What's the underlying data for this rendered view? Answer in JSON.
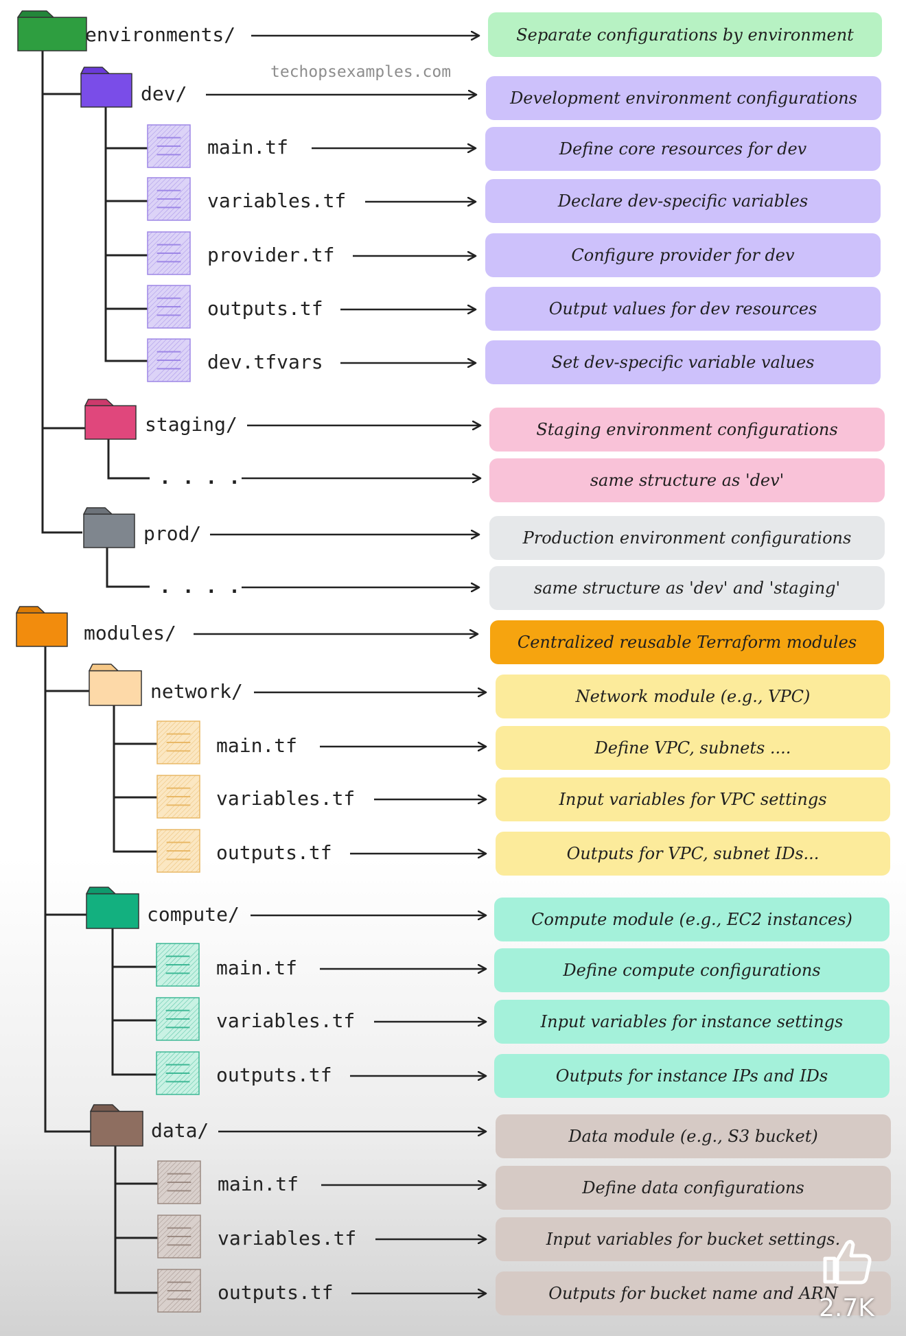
{
  "watermark": "techopsexamples.com",
  "like_count": "2.7K",
  "colors": {
    "green": {
      "folder": "#2e9e40",
      "folderTab": "#23863a",
      "box": "#b7f2c3"
    },
    "violet": {
      "folder": "#7a4de8",
      "folderTab": "#6a3bd8",
      "file": "#dcd3f7",
      "fileLine": "#9d86e6",
      "box": "#cdc1fb"
    },
    "pink": {
      "folder": "#e0477c",
      "folderTab": "#cc3a6c",
      "box": "#f9c2d8"
    },
    "gray": {
      "folder": "#7f868e",
      "folderTab": "#6d737a",
      "box": "#e6e8ea"
    },
    "orange": {
      "folder": "#f28c0d",
      "folderTab": "#dd7c05",
      "box": "#f6a40f"
    },
    "peach": {
      "folder": "#fdd9a8",
      "folderTab": "#f6c887",
      "file": "#fbe7c2",
      "fileLine": "#e9b866",
      "box": "#fceb9b"
    },
    "teal": {
      "folder": "#13b07f",
      "folderTab": "#0f9a6d",
      "file": "#c9f2e4",
      "fileLine": "#3db895",
      "box": "#a4f1da"
    },
    "brown": {
      "folder": "#8e6e60",
      "folderTab": "#7a5c50",
      "file": "#d9d0cc",
      "fileLine": "#9b8a82",
      "box": "#d6cac5"
    }
  },
  "tree": [
    {
      "id": "environments",
      "kind": "folder",
      "label": "environments/",
      "desc": "Separate configurations by environment",
      "color": "green"
    },
    {
      "id": "dev",
      "kind": "folder",
      "label": "dev/",
      "desc": "Development environment configurations",
      "color": "violet"
    },
    {
      "id": "dev-main",
      "kind": "file",
      "label": "main.tf",
      "desc": "Define core resources for dev",
      "color": "violet"
    },
    {
      "id": "dev-variables",
      "kind": "file",
      "label": "variables.tf",
      "desc": "Declare dev-specific variables",
      "color": "violet"
    },
    {
      "id": "dev-provider",
      "kind": "file",
      "label": "provider.tf",
      "desc": "Configure provider for dev",
      "color": "violet"
    },
    {
      "id": "dev-outputs",
      "kind": "file",
      "label": "outputs.tf",
      "desc": "Output values for dev resources",
      "color": "violet"
    },
    {
      "id": "dev-tfvars",
      "kind": "file",
      "label": "dev.tfvars",
      "desc": "Set dev-specific variable values",
      "color": "violet"
    },
    {
      "id": "staging",
      "kind": "folder",
      "label": "staging/",
      "desc": "Staging environment configurations",
      "color": "pink"
    },
    {
      "id": "staging-rest",
      "kind": "dots",
      "label": ". . . .",
      "desc": "same structure as 'dev'",
      "color": "pink"
    },
    {
      "id": "prod",
      "kind": "folder",
      "label": "prod/",
      "desc": "Production environment configurations",
      "color": "gray"
    },
    {
      "id": "prod-rest",
      "kind": "dots",
      "label": ". . . .",
      "desc": "same structure as 'dev' and 'staging'",
      "color": "gray"
    },
    {
      "id": "modules",
      "kind": "folder",
      "label": "modules/",
      "desc": "Centralized reusable Terraform modules",
      "color": "orange"
    },
    {
      "id": "network",
      "kind": "folder",
      "label": "network/",
      "desc": "Network module (e.g., VPC)",
      "color": "peach"
    },
    {
      "id": "network-main",
      "kind": "file",
      "label": "main.tf",
      "desc": "Define VPC, subnets ....",
      "color": "peach"
    },
    {
      "id": "network-variables",
      "kind": "file",
      "label": "variables.tf",
      "desc": "Input variables for VPC settings",
      "color": "peach"
    },
    {
      "id": "network-outputs",
      "kind": "file",
      "label": "outputs.tf",
      "desc": "Outputs for VPC, subnet IDs...",
      "color": "peach"
    },
    {
      "id": "compute",
      "kind": "folder",
      "label": "compute/",
      "desc": "Compute module (e.g., EC2 instances)",
      "color": "teal"
    },
    {
      "id": "compute-main",
      "kind": "file",
      "label": "main.tf",
      "desc": "Define compute configurations",
      "color": "teal"
    },
    {
      "id": "compute-variables",
      "kind": "file",
      "label": "variables.tf",
      "desc": "Input variables for instance settings",
      "color": "teal"
    },
    {
      "id": "compute-outputs",
      "kind": "file",
      "label": "outputs.tf",
      "desc": "Outputs for instance IPs and IDs",
      "color": "teal"
    },
    {
      "id": "data",
      "kind": "folder",
      "label": "data/",
      "desc": "Data module (e.g., S3 bucket)",
      "color": "brown"
    },
    {
      "id": "data-main",
      "kind": "file",
      "label": "main.tf",
      "desc": "Define data configurations",
      "color": "brown"
    },
    {
      "id": "data-variables",
      "kind": "file",
      "label": "variables.tf",
      "desc": "Input variables for bucket settings.",
      "color": "brown"
    },
    {
      "id": "data-outputs",
      "kind": "file",
      "label": "outputs.tf",
      "desc": "Outputs for bucket name and ARN",
      "color": "brown"
    }
  ]
}
